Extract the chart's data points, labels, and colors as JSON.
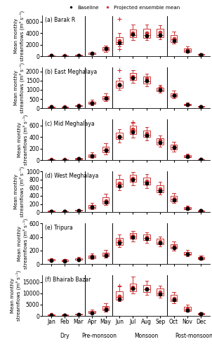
{
  "subplots": [
    {
      "label": "(a) Barak R",
      "ylabel": "Mean monthly\nstreamflows (m³ s⁻¹)",
      "ylim": [
        0,
        7000
      ],
      "yticks": [
        0,
        2000,
        4000,
        6000
      ],
      "baseline": [
        100,
        80,
        200,
        500,
        1400,
        2300,
        3800,
        3500,
        3700,
        2700,
        900,
        300
      ],
      "proj_mean": [
        130,
        100,
        200,
        500,
        1400,
        2700,
        4000,
        4000,
        4100,
        3100,
        1100,
        300
      ],
      "q10": [
        60,
        50,
        100,
        250,
        800,
        1700,
        2800,
        2800,
        3000,
        2200,
        600,
        180
      ],
      "q25": [
        90,
        70,
        140,
        350,
        1000,
        2100,
        3300,
        3200,
        3300,
        2500,
        800,
        230
      ],
      "median": [
        110,
        85,
        170,
        430,
        1200,
        2500,
        3700,
        3700,
        3700,
        2900,
        1000,
        270
      ],
      "q75": [
        160,
        120,
        230,
        600,
        1600,
        3300,
        4600,
        4700,
        4700,
        3700,
        1400,
        380
      ],
      "q90": [
        200,
        155,
        300,
        750,
        1900,
        4000,
        5500,
        5500,
        5400,
        4300,
        1700,
        470
      ],
      "outliers_high": [
        [
          5,
          6500
        ]
      ],
      "outliers_low": [
        [
          5,
          1200
        ]
      ]
    },
    {
      "label": "(b) East Meghalaya",
      "ylabel": "Mean monthly\nstreamflows (m³ s⁻¹)",
      "ylim": [
        0,
        2200
      ],
      "yticks": [
        0,
        500,
        1000,
        1500,
        2000
      ],
      "baseline": [
        70,
        60,
        130,
        280,
        540,
        1250,
        1650,
        1500,
        1000,
        700,
        180,
        80
      ],
      "proj_mean": [
        80,
        70,
        150,
        300,
        570,
        1320,
        1730,
        1600,
        1100,
        740,
        200,
        90
      ],
      "q10": [
        40,
        35,
        80,
        170,
        380,
        980,
        1380,
        1180,
        850,
        530,
        130,
        55
      ],
      "q25": [
        55,
        48,
        105,
        230,
        470,
        1100,
        1530,
        1340,
        920,
        610,
        160,
        68
      ],
      "median": [
        70,
        60,
        130,
        275,
        540,
        1240,
        1680,
        1470,
        990,
        690,
        185,
        80
      ],
      "q75": [
        98,
        78,
        175,
        360,
        660,
        1490,
        1900,
        1720,
        1130,
        820,
        250,
        110
      ],
      "q90": [
        118,
        93,
        210,
        450,
        790,
        1640,
        2050,
        1870,
        1250,
        950,
        310,
        135
      ],
      "outliers_high": [
        [
          5,
          2050
        ]
      ],
      "outliers_low": []
    },
    {
      "label": "(c) Mid Meghalaya",
      "ylabel": "Mean monthly\nstreamflows (m³ s⁻¹)",
      "ylim": [
        0,
        700
      ],
      "yticks": [
        0,
        200,
        400,
        600
      ],
      "baseline": [
        8,
        8,
        25,
        70,
        175,
        400,
        490,
        430,
        310,
        220,
        60,
        15
      ],
      "proj_mean": [
        10,
        9,
        28,
        80,
        185,
        420,
        530,
        460,
        340,
        235,
        70,
        17
      ],
      "q10": [
        5,
        4,
        14,
        40,
        100,
        300,
        390,
        340,
        230,
        150,
        40,
        9
      ],
      "q25": [
        7,
        6,
        19,
        55,
        135,
        360,
        450,
        400,
        270,
        185,
        52,
        12
      ],
      "median": [
        9,
        8,
        24,
        72,
        170,
        400,
        510,
        440,
        310,
        220,
        63,
        15
      ],
      "q75": [
        13,
        11,
        33,
        100,
        230,
        470,
        590,
        510,
        380,
        270,
        85,
        20
      ],
      "q90": [
        17,
        15,
        42,
        130,
        290,
        540,
        650,
        570,
        430,
        320,
        110,
        26
      ],
      "outliers_high": [
        [
          6,
          660
        ]
      ],
      "outliers_low": []
    },
    {
      "label": "(d) West Meghalaya",
      "ylabel": "Mean monthly\nstreamflows (m³ s⁻¹)",
      "ylim": [
        0,
        1000
      ],
      "yticks": [
        0,
        200,
        400,
        600,
        800,
        1000
      ],
      "baseline": [
        18,
        14,
        35,
        120,
        240,
        640,
        790,
        720,
        520,
        300,
        85,
        28
      ],
      "proj_mean": [
        22,
        17,
        42,
        135,
        275,
        710,
        840,
        760,
        570,
        330,
        100,
        33
      ],
      "q10": [
        11,
        9,
        20,
        70,
        170,
        540,
        660,
        590,
        430,
        220,
        58,
        18
      ],
      "q25": [
        15,
        12,
        28,
        95,
        215,
        620,
        740,
        670,
        490,
        260,
        74,
        23
      ],
      "median": [
        20,
        16,
        38,
        125,
        260,
        700,
        820,
        740,
        545,
        305,
        92,
        30
      ],
      "q75": [
        28,
        22,
        55,
        175,
        360,
        820,
        920,
        850,
        660,
        395,
        130,
        42
      ],
      "q90": [
        36,
        28,
        70,
        220,
        450,
        920,
        990,
        940,
        740,
        470,
        165,
        54
      ],
      "outliers_high": [],
      "outliers_low": []
    },
    {
      "label": "(e) Tripura",
      "ylabel": "Mean monthly\nstreamflows (m³ s⁻¹)",
      "ylim": [
        0,
        600
      ],
      "yticks": [
        0,
        200,
        400,
        600
      ],
      "baseline": [
        55,
        45,
        65,
        100,
        130,
        310,
        400,
        370,
        310,
        240,
        145,
        85
      ],
      "proj_mean": [
        60,
        50,
        72,
        110,
        145,
        340,
        420,
        395,
        330,
        260,
        160,
        90
      ],
      "q10": [
        38,
        30,
        48,
        70,
        95,
        250,
        335,
        315,
        260,
        200,
        120,
        64
      ],
      "q25": [
        48,
        38,
        58,
        85,
        115,
        285,
        375,
        350,
        290,
        225,
        135,
        75
      ],
      "median": [
        57,
        47,
        67,
        103,
        133,
        320,
        410,
        380,
        315,
        248,
        150,
        87
      ],
      "q75": [
        72,
        59,
        84,
        126,
        170,
        385,
        455,
        432,
        370,
        295,
        180,
        103
      ],
      "q90": [
        87,
        72,
        102,
        152,
        205,
        435,
        490,
        465,
        410,
        335,
        212,
        125
      ],
      "outliers_high": [],
      "outliers_low": []
    },
    {
      "label": "(f) Bhairab Bazar",
      "ylabel": "Mean monthly\nstreamflows (m³ s⁻¹)",
      "ylim": [
        0,
        18000
      ],
      "yticks": [
        0,
        5000,
        10000,
        15000
      ],
      "baseline": [
        450,
        320,
        600,
        1400,
        2800,
        7500,
        12000,
        11800,
        9800,
        7200,
        2600,
        900
      ],
      "proj_mean": [
        550,
        400,
        720,
        1700,
        3400,
        8800,
        12800,
        12200,
        10500,
        7800,
        3100,
        1050
      ],
      "q10": [
        280,
        200,
        380,
        900,
        2000,
        6500,
        10000,
        9500,
        8000,
        5500,
        1900,
        600
      ],
      "q25": [
        380,
        270,
        490,
        1150,
        2400,
        7300,
        11000,
        10700,
        9000,
        6400,
        2300,
        760
      ],
      "median": [
        500,
        360,
        640,
        1550,
        3000,
        8300,
        12200,
        11900,
        9900,
        7100,
        2800,
        960
      ],
      "q75": [
        720,
        530,
        890,
        2100,
        4400,
        10800,
        14200,
        13600,
        12000,
        9200,
        4000,
        1250
      ],
      "q90": [
        910,
        660,
        1100,
        2700,
        5500,
        13000,
        17500,
        15500,
        13500,
        10500,
        4900,
        1550
      ],
      "outliers_high": [
        [
          5,
          13500
        ]
      ],
      "outliers_low": []
    }
  ],
  "months": [
    "Jan",
    "Feb",
    "Mar",
    "Apr",
    "May",
    "Jun",
    "Jul",
    "Aug",
    "Sep",
    "Oct",
    "Nov",
    "Dec"
  ],
  "box_color": "#cc3333",
  "box_facecolor": "white",
  "baseline_color": "black",
  "proj_color": "#cc3333"
}
